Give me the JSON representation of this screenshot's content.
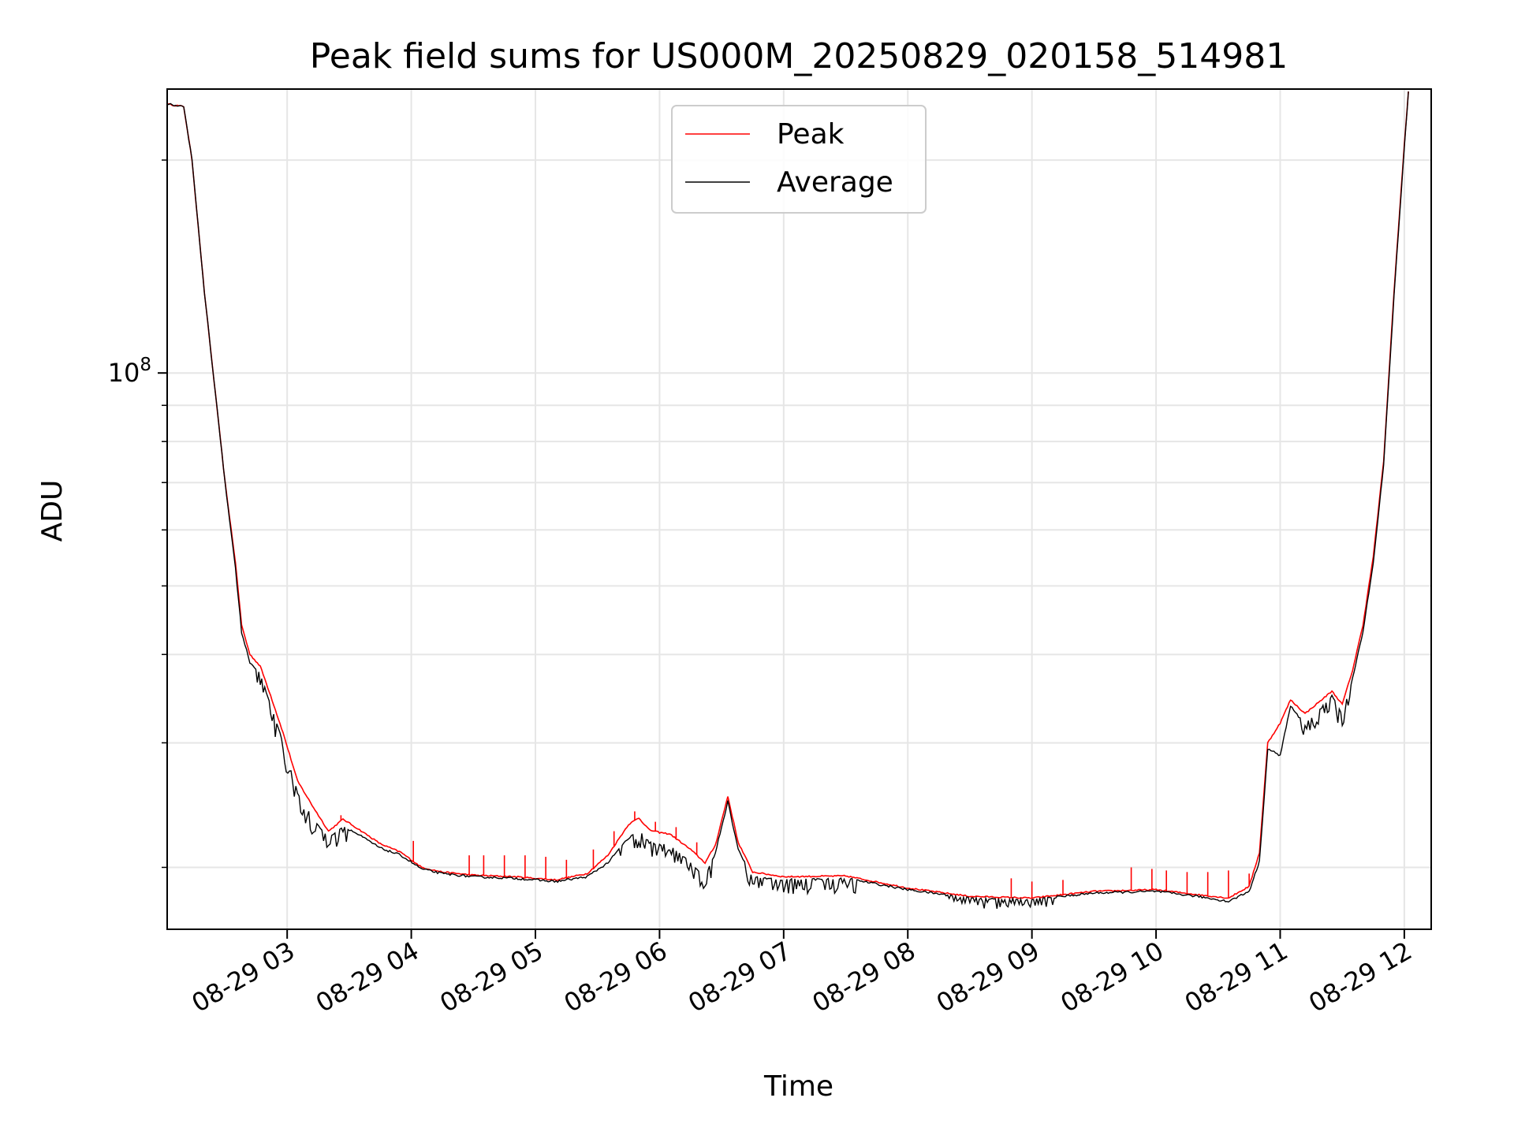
{
  "chart_data": {
    "type": "line",
    "title": "Peak field sums for US000M_20250829_020158_514981",
    "xlabel": "Time",
    "ylabel": "ADU",
    "yscale": "log",
    "grid": true,
    "legend_position": "top-center",
    "x_ticks": [
      "08-29 03",
      "08-29 04",
      "08-29 05",
      "08-29 06",
      "08-29 07",
      "08-29 08",
      "08-29 09",
      "08-29 10",
      "08-29 11",
      "08-29 12"
    ],
    "y_tick_base": "10",
    "y_tick_exp": "8",
    "y_tick_value": 100000000,
    "xlim": [
      "2025-08-29T02:02",
      "2025-08-29T12:13"
    ],
    "ylim": [
      16350000,
      252000000
    ],
    "series": [
      {
        "name": "Peak",
        "color": "#ff0000",
        "points": [
          [
            "2025-08-29T02:02",
            240000000
          ],
          [
            "2025-08-29T02:10",
            238000000
          ],
          [
            "2025-08-29T02:14",
            200000000
          ],
          [
            "2025-08-29T02:20",
            130000000
          ],
          [
            "2025-08-29T02:30",
            70000000
          ],
          [
            "2025-08-29T02:35",
            54000000
          ],
          [
            "2025-08-29T02:38",
            44000000
          ],
          [
            "2025-08-29T02:42",
            40000000
          ],
          [
            "2025-08-29T02:47",
            38500000
          ],
          [
            "2025-08-29T02:52",
            35000000
          ],
          [
            "2025-08-29T02:58",
            31000000
          ],
          [
            "2025-08-29T03:05",
            26500000
          ],
          [
            "2025-08-29T03:12",
            24500000
          ],
          [
            "2025-08-29T03:20",
            22500000
          ],
          [
            "2025-08-29T03:27",
            23400000
          ],
          [
            "2025-08-29T03:35",
            22600000
          ],
          [
            "2025-08-29T03:45",
            21600000
          ],
          [
            "2025-08-29T03:55",
            21000000
          ],
          [
            "2025-08-29T04:05",
            20000000
          ],
          [
            "2025-08-29T04:15",
            19700000
          ],
          [
            "2025-08-29T04:30",
            19500000
          ],
          [
            "2025-08-29T04:50",
            19400000
          ],
          [
            "2025-08-29T05:10",
            19200000
          ],
          [
            "2025-08-29T05:25",
            19600000
          ],
          [
            "2025-08-29T05:35",
            20800000
          ],
          [
            "2025-08-29T05:45",
            23000000
          ],
          [
            "2025-08-29T05:50",
            23500000
          ],
          [
            "2025-08-29T05:55",
            22600000
          ],
          [
            "2025-08-29T06:00",
            22400000
          ],
          [
            "2025-08-29T06:05",
            22300000
          ],
          [
            "2025-08-29T06:15",
            21200000
          ],
          [
            "2025-08-29T06:22",
            20300000
          ],
          [
            "2025-08-29T06:27",
            21500000
          ],
          [
            "2025-08-29T06:33",
            25200000
          ],
          [
            "2025-08-29T06:38",
            21700000
          ],
          [
            "2025-08-29T06:45",
            19700000
          ],
          [
            "2025-08-29T07:00",
            19400000
          ],
          [
            "2025-08-29T07:30",
            19450000
          ],
          [
            "2025-08-29T08:00",
            18700000
          ],
          [
            "2025-08-29T08:30",
            18200000
          ],
          [
            "2025-08-29T09:00",
            18100000
          ],
          [
            "2025-08-29T09:30",
            18500000
          ],
          [
            "2025-08-29T10:00",
            18600000
          ],
          [
            "2025-08-29T10:20",
            18300000
          ],
          [
            "2025-08-29T10:35",
            18100000
          ],
          [
            "2025-08-29T10:45",
            18800000
          ],
          [
            "2025-08-29T10:50",
            21000000
          ],
          [
            "2025-08-29T10:54",
            30000000
          ],
          [
            "2025-08-29T11:00",
            32000000
          ],
          [
            "2025-08-29T11:05",
            34500000
          ],
          [
            "2025-08-29T11:12",
            33000000
          ],
          [
            "2025-08-29T11:20",
            34500000
          ],
          [
            "2025-08-29T11:25",
            35500000
          ],
          [
            "2025-08-29T11:30",
            34000000
          ],
          [
            "2025-08-29T11:35",
            38000000
          ],
          [
            "2025-08-29T11:40",
            44000000
          ],
          [
            "2025-08-29T11:45",
            55000000
          ],
          [
            "2025-08-29T11:50",
            75000000
          ],
          [
            "2025-08-29T11:55",
            130000000
          ],
          [
            "2025-08-29T12:00",
            210000000
          ],
          [
            "2025-08-29T12:02",
            250000000
          ]
        ],
        "spikes": [
          [
            "2025-08-29T03:26",
            23700000
          ],
          [
            "2025-08-29T04:01",
            21800000
          ],
          [
            "2025-08-29T04:28",
            20800000
          ],
          [
            "2025-08-29T04:35",
            20800000
          ],
          [
            "2025-08-29T04:45",
            20800000
          ],
          [
            "2025-08-29T04:55",
            20800000
          ],
          [
            "2025-08-29T05:05",
            20700000
          ],
          [
            "2025-08-29T05:15",
            20500000
          ],
          [
            "2025-08-29T05:28",
            21200000
          ],
          [
            "2025-08-29T05:38",
            22500000
          ],
          [
            "2025-08-29T05:48",
            24000000
          ],
          [
            "2025-08-29T05:58",
            23200000
          ],
          [
            "2025-08-29T06:08",
            22800000
          ],
          [
            "2025-08-29T06:18",
            21700000
          ],
          [
            "2025-08-29T08:50",
            19300000
          ],
          [
            "2025-08-29T09:00",
            19100000
          ],
          [
            "2025-08-29T09:15",
            19200000
          ],
          [
            "2025-08-29T09:48",
            20000000
          ],
          [
            "2025-08-29T09:58",
            19900000
          ],
          [
            "2025-08-29T10:05",
            19800000
          ],
          [
            "2025-08-29T10:15",
            19700000
          ],
          [
            "2025-08-29T10:25",
            19700000
          ],
          [
            "2025-08-29T10:35",
            19800000
          ],
          [
            "2025-08-29T10:45",
            19600000
          ]
        ]
      },
      {
        "name": "Average",
        "color": "#000000",
        "points": [
          [
            "2025-08-29T02:02",
            240000000
          ],
          [
            "2025-08-29T02:10",
            238000000
          ],
          [
            "2025-08-29T02:14",
            200000000
          ],
          [
            "2025-08-29T02:20",
            130000000
          ],
          [
            "2025-08-29T02:30",
            70000000
          ],
          [
            "2025-08-29T02:35",
            53000000
          ],
          [
            "2025-08-29T02:38",
            43000000
          ],
          [
            "2025-08-29T02:42",
            39000000
          ],
          [
            "2025-08-29T02:47",
            37500000
          ],
          [
            "2025-08-29T02:52",
            34000000
          ],
          [
            "2025-08-29T02:58",
            30000000
          ],
          [
            "2025-08-29T03:05",
            25500000
          ],
          [
            "2025-08-29T03:12",
            23500000
          ],
          [
            "2025-08-29T03:20",
            22000000
          ],
          [
            "2025-08-29T03:27",
            22900000
          ],
          [
            "2025-08-29T03:35",
            22200000
          ],
          [
            "2025-08-29T03:45",
            21300000
          ],
          [
            "2025-08-29T03:55",
            20800000
          ],
          [
            "2025-08-29T04:05",
            19900000
          ],
          [
            "2025-08-29T04:15",
            19600000
          ],
          [
            "2025-08-29T04:30",
            19400000
          ],
          [
            "2025-08-29T04:50",
            19300000
          ],
          [
            "2025-08-29T05:10",
            19100000
          ],
          [
            "2025-08-29T05:25",
            19400000
          ],
          [
            "2025-08-29T05:35",
            20300000
          ],
          [
            "2025-08-29T05:45",
            22000000
          ],
          [
            "2025-08-29T05:50",
            22500000
          ],
          [
            "2025-08-29T05:55",
            21700000
          ],
          [
            "2025-08-29T06:00",
            21500000
          ],
          [
            "2025-08-29T06:05",
            21500000
          ],
          [
            "2025-08-29T06:15",
            20300000
          ],
          [
            "2025-08-29T06:22",
            19300000
          ],
          [
            "2025-08-29T06:27",
            21000000
          ],
          [
            "2025-08-29T06:33",
            24800000
          ],
          [
            "2025-08-29T06:38",
            21200000
          ],
          [
            "2025-08-29T06:45",
            19400000
          ],
          [
            "2025-08-29T07:00",
            19200000
          ],
          [
            "2025-08-29T07:30",
            19300000
          ],
          [
            "2025-08-29T08:00",
            18600000
          ],
          [
            "2025-08-29T08:30",
            18100000
          ],
          [
            "2025-08-29T09:00",
            18000000
          ],
          [
            "2025-08-29T09:30",
            18400000
          ],
          [
            "2025-08-29T10:00",
            18500000
          ],
          [
            "2025-08-29T10:20",
            18200000
          ],
          [
            "2025-08-29T10:35",
            17900000
          ],
          [
            "2025-08-29T10:45",
            18500000
          ],
          [
            "2025-08-29T10:50",
            20400000
          ],
          [
            "2025-08-29T10:54",
            29400000
          ],
          [
            "2025-08-29T11:00",
            28800000
          ],
          [
            "2025-08-29T11:05",
            33800000
          ],
          [
            "2025-08-29T11:12",
            31800000
          ],
          [
            "2025-08-29T11:20",
            33600000
          ],
          [
            "2025-08-29T11:25",
            35000000
          ],
          [
            "2025-08-29T11:30",
            32800000
          ],
          [
            "2025-08-29T11:35",
            37000000
          ],
          [
            "2025-08-29T11:40",
            43000000
          ],
          [
            "2025-08-29T11:45",
            54000000
          ],
          [
            "2025-08-29T11:50",
            74000000
          ],
          [
            "2025-08-29T11:55",
            128000000
          ],
          [
            "2025-08-29T12:00",
            208000000
          ],
          [
            "2025-08-29T12:02",
            250000000
          ]
        ],
        "noise_ranges": [
          [
            "2025-08-29T02:45",
            "2025-08-29T03:30",
            0.94
          ],
          [
            "2025-08-29T05:40",
            "2025-08-29T06:25",
            0.95
          ],
          [
            "2025-08-29T06:40",
            "2025-08-29T07:35",
            0.955
          ],
          [
            "2025-08-29T08:20",
            "2025-08-29T09:10",
            0.97
          ],
          [
            "2025-08-29T11:10",
            "2025-08-29T11:35",
            0.95
          ]
        ]
      }
    ]
  }
}
